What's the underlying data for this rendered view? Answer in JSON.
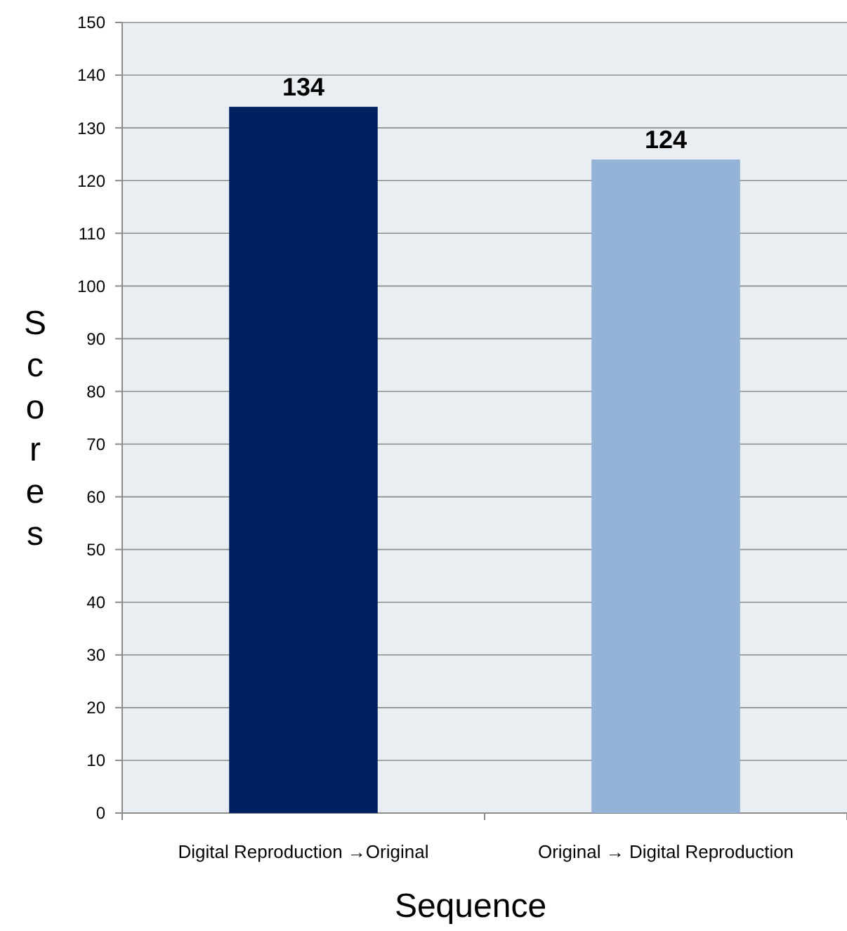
{
  "chart_data": {
    "type": "bar",
    "xlabel": "Sequence",
    "ylabel": "Scores",
    "categories": [
      "Digital Reproduction →Original",
      "Original → Digital Reproduction"
    ],
    "values": [
      134,
      124
    ],
    "colors": [
      "#002060",
      "#95b3d7"
    ],
    "ylim": [
      0,
      150
    ],
    "yticks": [
      0,
      10,
      20,
      30,
      40,
      50,
      60,
      70,
      80,
      90,
      100,
      110,
      120,
      130,
      140,
      150
    ],
    "grid": "y",
    "data_labels": true
  }
}
